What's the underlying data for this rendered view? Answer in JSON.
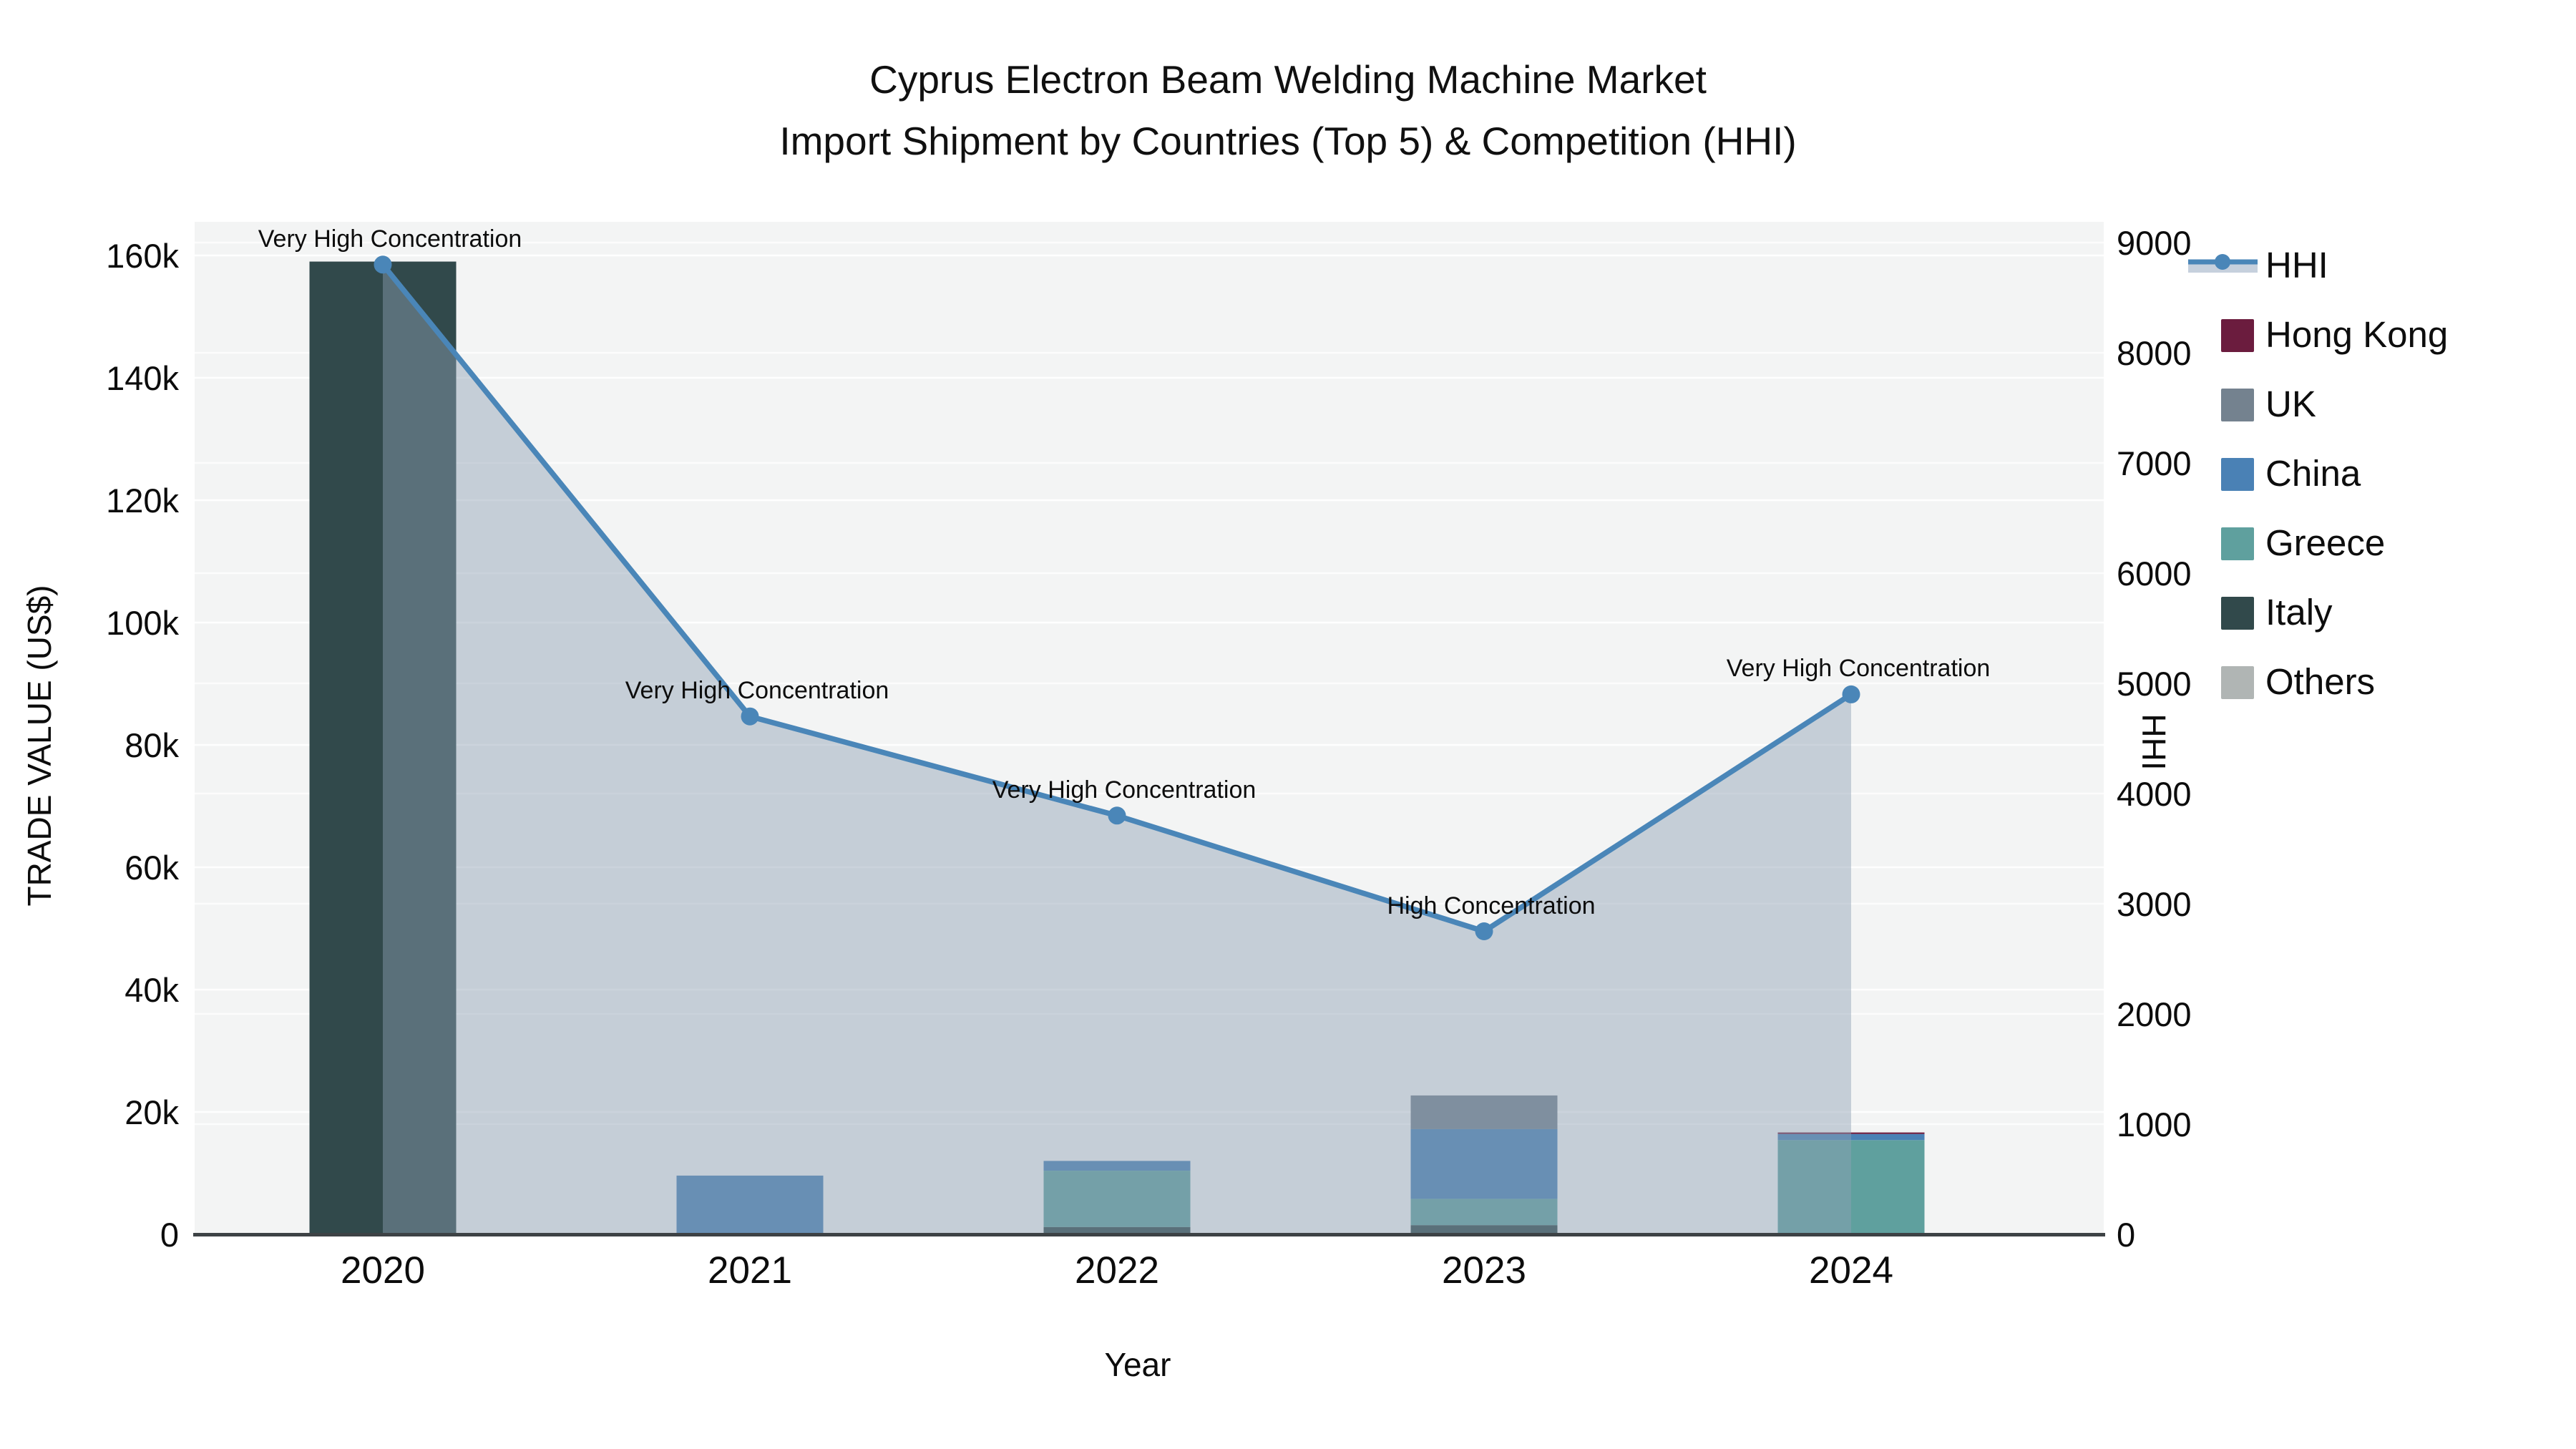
{
  "title": {
    "line1": "Cyprus Electron Beam Welding Machine Market",
    "line2": "Import Shipment by Countries (Top 5) & Competition (HHI)"
  },
  "axes": {
    "x_label": "Year",
    "y_left_label": "TRADE VALUE (US$)",
    "y_right_label": "HHI",
    "y_left_ticks": [
      "0",
      "20k",
      "40k",
      "60k",
      "80k",
      "100k",
      "120k",
      "140k",
      "160k"
    ],
    "y_right_ticks": [
      "0",
      "1000",
      "2000",
      "3000",
      "4000",
      "5000",
      "6000",
      "7000",
      "8000",
      "9000"
    ],
    "x_ticks": [
      "2020",
      "2021",
      "2022",
      "2023",
      "2024"
    ]
  },
  "legend": [
    {
      "label": "HHI",
      "type": "line",
      "color": "#4a86b8",
      "band": "#c6d0dd"
    },
    {
      "label": "Hong Kong",
      "type": "chip",
      "color": "#6b1c3e"
    },
    {
      "label": "UK",
      "type": "chip",
      "color": "#74828f"
    },
    {
      "label": "China",
      "type": "chip",
      "color": "#4a81b5"
    },
    {
      "label": "Greece",
      "type": "chip",
      "color": "#5fa09e"
    },
    {
      "label": "Italy",
      "type": "chip",
      "color": "#31494b"
    },
    {
      "label": "Others",
      "type": "chip",
      "color": "#b0b5b4"
    }
  ],
  "chart_data": {
    "type": "bar",
    "subtype": "stacked-bars-with-line-area",
    "title": "Cyprus Electron Beam Welding Machine Market Import Shipment by Countries (Top 5) & Competition (HHI)",
    "xlabel": "Year",
    "ylabel_left": "TRADE VALUE (US$)",
    "ylabel_right": "HHI",
    "categories": [
      "2020",
      "2021",
      "2022",
      "2023",
      "2024"
    ],
    "bar_series": [
      {
        "name": "Hong Kong",
        "color": "#6b1c3e",
        "values": [
          0,
          0,
          0,
          0,
          250
        ]
      },
      {
        "name": "UK",
        "color": "#74828f",
        "values": [
          0,
          0,
          0,
          5500,
          0
        ]
      },
      {
        "name": "China",
        "color": "#4a81b5",
        "values": [
          0,
          9600,
          1600,
          11400,
          1000
        ]
      },
      {
        "name": "Greece",
        "color": "#5fa09e",
        "values": [
          0,
          0,
          9200,
          4300,
          15400
        ]
      },
      {
        "name": "Italy",
        "color": "#31494b",
        "values": [
          159000,
          0,
          1200,
          1500,
          0
        ]
      },
      {
        "name": "Others",
        "color": "#b0b5b4",
        "values": [
          0,
          0,
          0,
          0,
          0
        ]
      }
    ],
    "line_series": {
      "name": "HHI",
      "color": "#4a86b8",
      "area_fill": "#8fa0b4",
      "area_opacity": 0.45,
      "values": [
        8800,
        4700,
        3800,
        2750,
        4900
      ]
    },
    "annotations": [
      "Very High Concentration",
      "Very High Concentration",
      "Very High Concentration",
      "High Concentration",
      "Very High Concentration"
    ],
    "y_left_axis": {
      "min": 0,
      "max": 165500,
      "tick_step": 20000,
      "ticks_max": 160000
    },
    "y_right_axis": {
      "min": 0,
      "max": 9190,
      "tick_step": 1000,
      "ticks_max": 9000
    },
    "grid": true,
    "legend_position": "right"
  }
}
